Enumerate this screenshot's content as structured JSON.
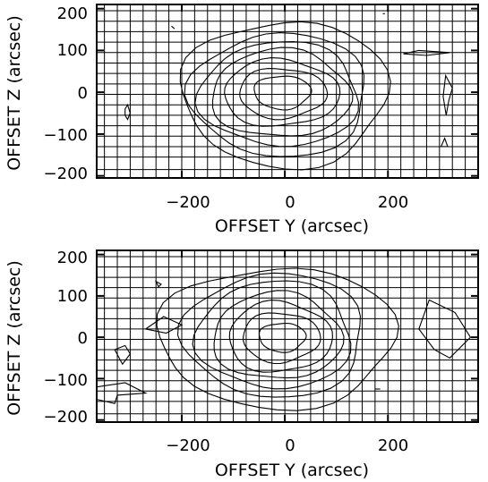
{
  "chart_data": [
    {
      "type": "contour",
      "panel": "top",
      "xlabel": "OFFSET Y (arcsec)",
      "ylabel": "OFFSET Z (arcsec)",
      "xlim": [
        -365,
        375
      ],
      "ylim": [
        -205,
        210
      ],
      "xticks": [
        -200,
        0,
        200
      ],
      "xtick_labels": [
        "−200",
        "0",
        "200"
      ],
      "yticks": [
        200,
        100,
        0,
        -100,
        -200
      ],
      "ytick_labels": [
        "200",
        "100",
        "0",
        "−100",
        "−200"
      ],
      "grid": true,
      "grid_y_values": [
        -185,
        -155,
        -130,
        -105,
        -80,
        -55,
        -30,
        -5,
        20,
        45,
        70,
        95,
        120,
        145,
        170,
        195
      ],
      "levels": [
        {
          "cx": -5,
          "cy": 0,
          "rx": 55,
          "ry": 40
        },
        {
          "cx": -5,
          "cy": -2,
          "rx": 85,
          "ry": 60
        },
        {
          "cx": -8,
          "cy": -2,
          "rx": 112,
          "ry": 80
        },
        {
          "cx": -8,
          "cy": -4,
          "rx": 135,
          "ry": 105
        },
        {
          "cx": -10,
          "cy": -5,
          "rx": 155,
          "ry": 125
        },
        {
          "cx": -10,
          "cy": -6,
          "rx": 172,
          "ry": 148
        },
        {
          "cx": 0,
          "cy": -3,
          "rx": 200,
          "ry": 175
        }
      ],
      "islands": [
        {
          "points": [
            [
              -310,
              -55
            ],
            [
              -305,
              -65
            ],
            [
              -300,
              -50
            ],
            [
              -305,
              -30
            ],
            [
              -310,
              -40
            ]
          ]
        },
        {
          "points": [
            [
              260,
              100
            ],
            [
              320,
              95
            ],
            [
              275,
              88
            ],
            [
              230,
              92
            ]
          ]
        },
        {
          "points": [
            [
              312,
              40
            ],
            [
              325,
              10
            ],
            [
              318,
              -20
            ],
            [
              313,
              -55
            ],
            [
              307,
              -10
            ]
          ]
        },
        {
          "points": [
            [
              310,
              -110
            ],
            [
              316,
              -130
            ],
            [
              303,
              -130
            ]
          ]
        },
        {
          "points": [
            [
              -220,
              158
            ],
            [
              -214,
              152
            ]
          ]
        },
        {
          "points": [
            [
              190,
              188
            ],
            [
              194,
              188
            ]
          ]
        }
      ]
    },
    {
      "type": "contour",
      "panel": "bottom",
      "xlabel": "OFFSET Y (arcsec)",
      "ylabel": "OFFSET Z (arcsec)",
      "xlim": [
        -365,
        375
      ],
      "ylim": [
        -205,
        210
      ],
      "xticks": [
        -200,
        0,
        200
      ],
      "xtick_labels": [
        "−200",
        "0",
        "200"
      ],
      "yticks": [
        200,
        100,
        0,
        -100,
        -200
      ],
      "ytick_labels": [
        "200",
        "100",
        "0",
        "−100",
        "−200"
      ],
      "grid": true,
      "grid_y_values": [
        -185,
        -155,
        -130,
        -105,
        -80,
        -55,
        -30,
        -5,
        20,
        45,
        70,
        95,
        120,
        145,
        170,
        195
      ],
      "levels": [
        {
          "cx": -5,
          "cy": 0,
          "rx": 45,
          "ry": 35
        },
        {
          "cx": -8,
          "cy": 0,
          "rx": 75,
          "ry": 60
        },
        {
          "cx": -10,
          "cy": 0,
          "rx": 100,
          "ry": 85
        },
        {
          "cx": -15,
          "cy": 2,
          "rx": 125,
          "ry": 105
        },
        {
          "cx": -20,
          "cy": 5,
          "rx": 150,
          "ry": 130
        },
        {
          "cx": -20,
          "cy": 5,
          "rx": 175,
          "ry": 150
        },
        {
          "cx": -15,
          "cy": 0,
          "rx": 230,
          "ry": 170
        }
      ],
      "islands": [
        {
          "points": [
            [
              -365,
              -120
            ],
            [
              -310,
              -110
            ],
            [
              -270,
              -135
            ],
            [
              -325,
              -140
            ],
            [
              -330,
              -160
            ],
            [
              -365,
              -150
            ]
          ]
        },
        {
          "points": [
            [
              -330,
              -30
            ],
            [
              -310,
              -20
            ],
            [
              -300,
              -40
            ],
            [
              -315,
              -65
            ]
          ]
        },
        {
          "points": [
            [
              -270,
              20
            ],
            [
              -230,
              10
            ],
            [
              -200,
              30
            ],
            [
              -235,
              50
            ]
          ]
        },
        {
          "points": [
            [
              -250,
              135
            ],
            [
              -240,
              128
            ],
            [
              -245,
              122
            ]
          ]
        },
        {
          "points": [
            [
              280,
              90
            ],
            [
              330,
              60
            ],
            [
              360,
              0
            ],
            [
              320,
              -50
            ],
            [
              290,
              -30
            ],
            [
              260,
              20
            ]
          ]
        },
        {
          "points": [
            [
              175,
              -125
            ],
            [
              185,
              -125
            ]
          ]
        }
      ]
    }
  ]
}
